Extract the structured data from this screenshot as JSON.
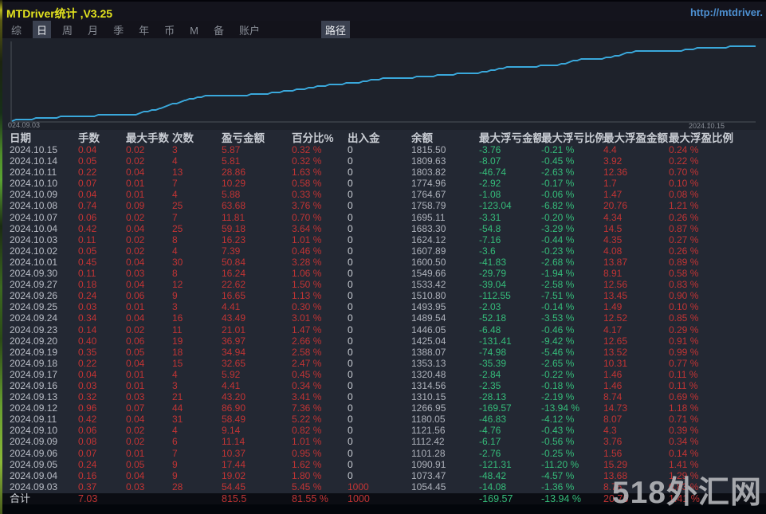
{
  "window": {
    "title": "MTDriver统计 ,V3.25",
    "url": "http://mtdriver."
  },
  "menu": {
    "items": [
      {
        "label": "综",
        "active": false
      },
      {
        "label": "日",
        "active": true
      },
      {
        "label": "周",
        "active": false
      },
      {
        "label": "月",
        "active": false
      },
      {
        "label": "季",
        "active": false
      },
      {
        "label": "年",
        "active": false
      },
      {
        "label": "币",
        "active": false
      },
      {
        "label": "M",
        "active": false
      },
      {
        "label": "备",
        "active": false
      },
      {
        "label": "账户",
        "active": false
      }
    ],
    "path_label": "路径"
  },
  "chart_data": {
    "type": "line",
    "title": "",
    "x_start_label": "024.09.03",
    "x_end_label": "2024.10.15",
    "xlabel": "",
    "ylabel": "余额",
    "ylim": [
      1040,
      1825
    ],
    "grid": false,
    "legend": "none",
    "line_color": "#3aa8db",
    "x": [
      "2024.09.03",
      "2024.09.04",
      "2024.09.05",
      "2024.09.06",
      "2024.09.09",
      "2024.09.10",
      "2024.09.11",
      "2024.09.12",
      "2024.09.13",
      "2024.09.16",
      "2024.09.17",
      "2024.09.18",
      "2024.09.19",
      "2024.09.20",
      "2024.09.23",
      "2024.09.24",
      "2024.09.25",
      "2024.09.26",
      "2024.09.27",
      "2024.09.30",
      "2024.10.01",
      "2024.10.02",
      "2024.10.03",
      "2024.10.04",
      "2024.10.07",
      "2024.10.08",
      "2024.10.09",
      "2024.10.10",
      "2024.10.11",
      "2024.10.14",
      "2024.10.15"
    ],
    "series": [
      {
        "name": "余额",
        "values": [
          1054.45,
          1073.47,
          1090.91,
          1101.28,
          1112.42,
          1121.56,
          1180.05,
          1266.95,
          1310.15,
          1314.56,
          1320.48,
          1353.13,
          1388.07,
          1425.04,
          1446.05,
          1489.54,
          1493.95,
          1510.8,
          1533.42,
          1549.66,
          1600.5,
          1607.89,
          1624.12,
          1683.3,
          1695.11,
          1758.79,
          1764.67,
          1774.96,
          1803.82,
          1809.63,
          1815.5
        ]
      }
    ]
  },
  "table": {
    "headers": [
      "日期",
      "手数",
      "最大手数",
      "次数",
      "盈亏金额",
      "百分比%",
      "出入金",
      "余额",
      "最大浮亏金额",
      "最大浮亏比例",
      "最大浮盈金额",
      "最大浮盈比例"
    ],
    "rows": [
      [
        "2024.10.15",
        "0.04",
        "0.02",
        "3",
        "5.87",
        "0.32 %",
        "0",
        "1815.50",
        "-3.76",
        "-0.21 %",
        "4.4",
        "0.24 %"
      ],
      [
        "2024.10.14",
        "0.05",
        "0.02",
        "4",
        "5.81",
        "0.32 %",
        "0",
        "1809.63",
        "-8.07",
        "-0.45 %",
        "3.92",
        "0.22 %"
      ],
      [
        "2024.10.11",
        "0.22",
        "0.04",
        "13",
        "28.86",
        "1.63 %",
        "0",
        "1803.82",
        "-46.74",
        "-2.63 %",
        "12.36",
        "0.70 %"
      ],
      [
        "2024.10.10",
        "0.07",
        "0.01",
        "7",
        "10.29",
        "0.58 %",
        "0",
        "1774.96",
        "-2.92",
        "-0.17 %",
        "1.7",
        "0.10 %"
      ],
      [
        "2024.10.09",
        "0.04",
        "0.01",
        "4",
        "5.88",
        "0.33 %",
        "0",
        "1764.67",
        "-1.08",
        "-0.06 %",
        "1.47",
        "0.08 %"
      ],
      [
        "2024.10.08",
        "0.74",
        "0.09",
        "25",
        "63.68",
        "3.76 %",
        "0",
        "1758.79",
        "-123.04",
        "-6.82 %",
        "20.76",
        "1.21 %"
      ],
      [
        "2024.10.07",
        "0.06",
        "0.02",
        "7",
        "11.81",
        "0.70 %",
        "0",
        "1695.11",
        "-3.31",
        "-0.20 %",
        "4.34",
        "0.26 %"
      ],
      [
        "2024.10.04",
        "0.42",
        "0.04",
        "25",
        "59.18",
        "3.64 %",
        "0",
        "1683.30",
        "-54.8",
        "-3.29 %",
        "14.5",
        "0.87 %"
      ],
      [
        "2024.10.03",
        "0.11",
        "0.02",
        "8",
        "16.23",
        "1.01 %",
        "0",
        "1624.12",
        "-7.16",
        "-0.44 %",
        "4.35",
        "0.27 %"
      ],
      [
        "2024.10.02",
        "0.05",
        "0.02",
        "4",
        "7.39",
        "0.46 %",
        "0",
        "1607.89",
        "-3.6",
        "-0.23 %",
        "4.08",
        "0.26 %"
      ],
      [
        "2024.10.01",
        "0.45",
        "0.04",
        "30",
        "50.84",
        "3.28 %",
        "0",
        "1600.50",
        "-41.83",
        "-2.68 %",
        "13.87",
        "0.89 %"
      ],
      [
        "2024.09.30",
        "0.11",
        "0.03",
        "8",
        "16.24",
        "1.06 %",
        "0",
        "1549.66",
        "-29.79",
        "-1.94 %",
        "8.91",
        "0.58 %"
      ],
      [
        "2024.09.27",
        "0.18",
        "0.04",
        "12",
        "22.62",
        "1.50 %",
        "0",
        "1533.42",
        "-39.04",
        "-2.58 %",
        "12.56",
        "0.83 %"
      ],
      [
        "2024.09.26",
        "0.24",
        "0.06",
        "9",
        "16.65",
        "1.13 %",
        "0",
        "1510.80",
        "-112.55",
        "-7.51 %",
        "13.45",
        "0.90 %"
      ],
      [
        "2024.09.25",
        "0.03",
        "0.01",
        "3",
        "4.41",
        "0.30 %",
        "0",
        "1493.95",
        "-2.03",
        "-0.14 %",
        "1.49",
        "0.10 %"
      ],
      [
        "2024.09.24",
        "0.34",
        "0.04",
        "16",
        "43.49",
        "3.01 %",
        "0",
        "1489.54",
        "-52.18",
        "-3.53 %",
        "12.52",
        "0.85 %"
      ],
      [
        "2024.09.23",
        "0.14",
        "0.02",
        "11",
        "21.01",
        "1.47 %",
        "0",
        "1446.05",
        "-6.48",
        "-0.46 %",
        "4.17",
        "0.29 %"
      ],
      [
        "2024.09.20",
        "0.40",
        "0.06",
        "19",
        "36.97",
        "2.66 %",
        "0",
        "1425.04",
        "-131.41",
        "-9.42 %",
        "12.65",
        "0.91 %"
      ],
      [
        "2024.09.19",
        "0.35",
        "0.05",
        "18",
        "34.94",
        "2.58 %",
        "0",
        "1388.07",
        "-74.98",
        "-5.46 %",
        "13.52",
        "0.99 %"
      ],
      [
        "2024.09.18",
        "0.22",
        "0.04",
        "15",
        "32.65",
        "2.47 %",
        "0",
        "1353.13",
        "-35.39",
        "-2.65 %",
        "10.31",
        "0.77 %"
      ],
      [
        "2024.09.17",
        "0.04",
        "0.01",
        "4",
        "5.92",
        "0.45 %",
        "0",
        "1320.48",
        "-2.84",
        "-0.22 %",
        "1.46",
        "0.11 %"
      ],
      [
        "2024.09.16",
        "0.03",
        "0.01",
        "3",
        "4.41",
        "0.34 %",
        "0",
        "1314.56",
        "-2.35",
        "-0.18 %",
        "1.46",
        "0.11 %"
      ],
      [
        "2024.09.13",
        "0.32",
        "0.03",
        "21",
        "43.20",
        "3.41 %",
        "0",
        "1310.15",
        "-28.13",
        "-2.19 %",
        "8.74",
        "0.69 %"
      ],
      [
        "2024.09.12",
        "0.96",
        "0.07",
        "44",
        "86.90",
        "7.36 %",
        "0",
        "1266.95",
        "-169.57",
        "-13.94 %",
        "14.73",
        "1.18 %"
      ],
      [
        "2024.09.11",
        "0.42",
        "0.04",
        "31",
        "58.49",
        "5.22 %",
        "0",
        "1180.05",
        "-46.83",
        "-4.12 %",
        "8.07",
        "0.71 %"
      ],
      [
        "2024.09.10",
        "0.06",
        "0.02",
        "4",
        "9.14",
        "0.82 %",
        "0",
        "1121.56",
        "-4.76",
        "-0.43 %",
        "4.3",
        "0.39 %"
      ],
      [
        "2024.09.09",
        "0.08",
        "0.02",
        "6",
        "11.14",
        "1.01 %",
        "0",
        "1112.42",
        "-6.17",
        "-0.56 %",
        "3.76",
        "0.34 %"
      ],
      [
        "2024.09.06",
        "0.07",
        "0.01",
        "7",
        "10.37",
        "0.95 %",
        "0",
        "1101.28",
        "-2.76",
        "-0.25 %",
        "1.56",
        "0.14 %"
      ],
      [
        "2024.09.05",
        "0.24",
        "0.05",
        "9",
        "17.44",
        "1.62 %",
        "0",
        "1090.91",
        "-121.31",
        "-11.20 %",
        "15.29",
        "1.41 %"
      ],
      [
        "2024.09.04",
        "0.16",
        "0.04",
        "9",
        "19.02",
        "1.80 %",
        "0",
        "1073.47",
        "-48.42",
        "-4.57 %",
        "13.68",
        "1.29 %"
      ],
      [
        "2024.09.03",
        "0.37",
        "0.03",
        "28",
        "54.45",
        "5.45 %",
        "1000",
        "1054.45",
        "-14.08",
        "-1.36 %",
        "8.76",
        "0.83 %"
      ]
    ],
    "total_row": [
      "合计",
      "7.03",
      "",
      "",
      "815.5",
      "81.55 %",
      "1000",
      "",
      "-169.57",
      "-13.94 %",
      "20.76",
      "1.41 %"
    ]
  },
  "watermark": "518外汇网",
  "colors": {
    "profit_red": "#c23434",
    "drawdown_green": "#35bd7a",
    "equity_line": "#3aa8db",
    "title_yellow": "#e3e31f",
    "link_blue": "#4d8fd0"
  }
}
